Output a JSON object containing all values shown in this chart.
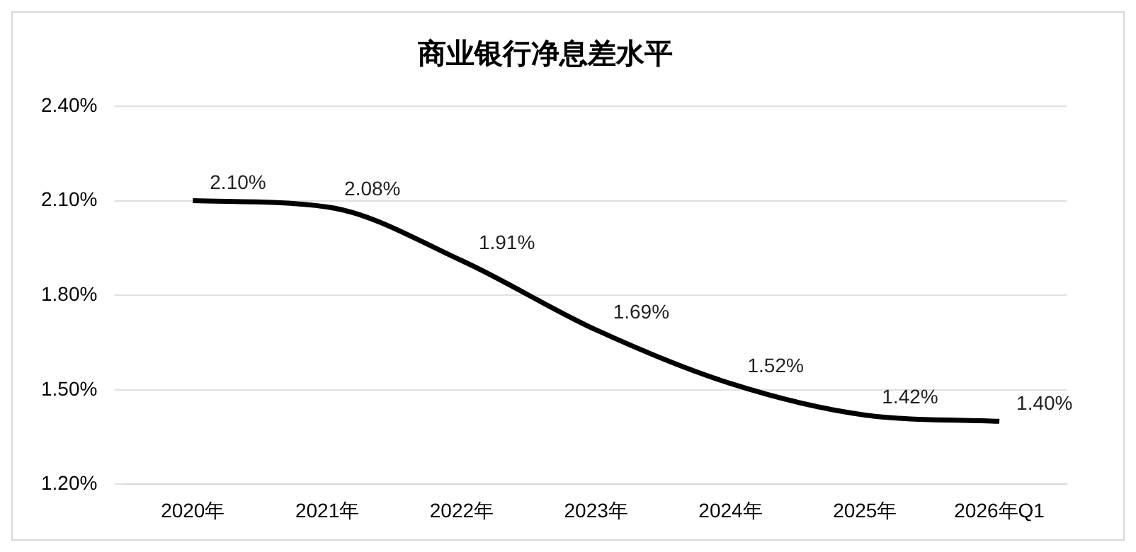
{
  "chart_data": {
    "type": "line",
    "title": "商业银行净息差水平",
    "categories": [
      "2020年",
      "2021年",
      "2022年",
      "2023年",
      "2024年",
      "2025年",
      "2026年Q1"
    ],
    "series": [
      {
        "color": "#000000",
        "values": [
          2.1,
          2.08,
          1.91,
          1.69,
          1.52,
          1.42,
          1.4
        ],
        "value_labels": [
          "2.10%",
          "2.08%",
          "1.91%",
          "1.69%",
          "1.52%",
          "1.42%",
          "1.40%"
        ]
      }
    ],
    "ylim": [
      1.2,
      2.4
    ],
    "yticks": [
      {
        "value": 1.2,
        "label": "1.20%"
      },
      {
        "value": 1.5,
        "label": "1.50%"
      },
      {
        "value": 1.8,
        "label": "1.80%"
      },
      {
        "value": 2.1,
        "label": "2.10%"
      },
      {
        "value": 2.4,
        "label": "2.40%"
      }
    ],
    "grid": "y",
    "legend": false,
    "marker": "none",
    "line_style": "solid"
  }
}
